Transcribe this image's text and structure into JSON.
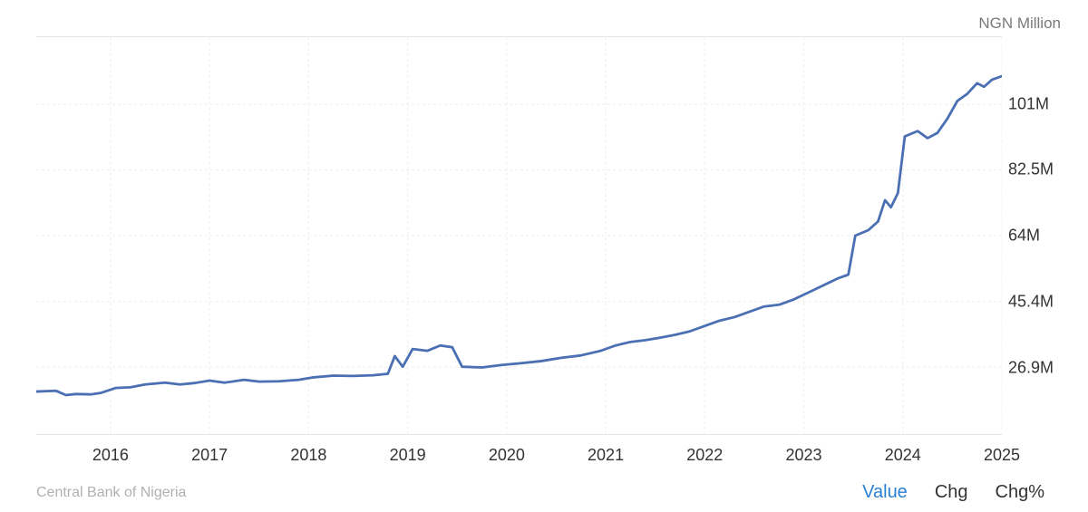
{
  "unit_label": "NGN Million",
  "source": "Central Bank of Nigeria",
  "tabs": {
    "value": "Value",
    "chg": "Chg",
    "chgpct": "Chg%"
  },
  "chart": {
    "type": "line",
    "line_color": "#4a6fb3",
    "line_width": 2.8,
    "background_color": "#ffffff",
    "grid_color": "#ededed",
    "border_color": "#e5e5e5",
    "xlim": [
      2015.25,
      2025.0
    ],
    "ylim": [
      8.0,
      120.0
    ],
    "x_ticks": [
      2016,
      2017,
      2018,
      2019,
      2020,
      2021,
      2022,
      2023,
      2024,
      2025
    ],
    "y_ticks": [
      {
        "v": 26.9,
        "label": "26.9M"
      },
      {
        "v": 45.4,
        "label": "45.4M"
      },
      {
        "v": 64.0,
        "label": "64M"
      },
      {
        "v": 82.5,
        "label": "82.5M"
      },
      {
        "v": 101.0,
        "label": "101M"
      }
    ],
    "axis_fontsize": 18,
    "unit_fontsize": 17,
    "source_fontsize": 16,
    "tab_fontsize": 20,
    "series": [
      {
        "x": 2015.25,
        "y": 20.0
      },
      {
        "x": 2015.45,
        "y": 20.2
      },
      {
        "x": 2015.55,
        "y": 19.0
      },
      {
        "x": 2015.65,
        "y": 19.3
      },
      {
        "x": 2015.8,
        "y": 19.2
      },
      {
        "x": 2015.9,
        "y": 19.6
      },
      {
        "x": 2016.05,
        "y": 21.0
      },
      {
        "x": 2016.2,
        "y": 21.2
      },
      {
        "x": 2016.35,
        "y": 22.0
      },
      {
        "x": 2016.55,
        "y": 22.5
      },
      {
        "x": 2016.7,
        "y": 22.0
      },
      {
        "x": 2016.85,
        "y": 22.4
      },
      {
        "x": 2017.0,
        "y": 23.1
      },
      {
        "x": 2017.15,
        "y": 22.5
      },
      {
        "x": 2017.35,
        "y": 23.3
      },
      {
        "x": 2017.5,
        "y": 22.8
      },
      {
        "x": 2017.7,
        "y": 22.9
      },
      {
        "x": 2017.9,
        "y": 23.3
      },
      {
        "x": 2018.05,
        "y": 24.0
      },
      {
        "x": 2018.25,
        "y": 24.5
      },
      {
        "x": 2018.45,
        "y": 24.4
      },
      {
        "x": 2018.65,
        "y": 24.6
      },
      {
        "x": 2018.8,
        "y": 25.0
      },
      {
        "x": 2018.87,
        "y": 30.0
      },
      {
        "x": 2018.95,
        "y": 27.0
      },
      {
        "x": 2019.05,
        "y": 32.0
      },
      {
        "x": 2019.2,
        "y": 31.5
      },
      {
        "x": 2019.33,
        "y": 33.0
      },
      {
        "x": 2019.45,
        "y": 32.5
      },
      {
        "x": 2019.55,
        "y": 27.0
      },
      {
        "x": 2019.75,
        "y": 26.8
      },
      {
        "x": 2019.95,
        "y": 27.5
      },
      {
        "x": 2020.15,
        "y": 28.0
      },
      {
        "x": 2020.35,
        "y": 28.6
      },
      {
        "x": 2020.55,
        "y": 29.5
      },
      {
        "x": 2020.75,
        "y": 30.2
      },
      {
        "x": 2020.95,
        "y": 31.5
      },
      {
        "x": 2021.1,
        "y": 33.0
      },
      {
        "x": 2021.25,
        "y": 34.0
      },
      {
        "x": 2021.4,
        "y": 34.5
      },
      {
        "x": 2021.55,
        "y": 35.2
      },
      {
        "x": 2021.7,
        "y": 36.0
      },
      {
        "x": 2021.85,
        "y": 37.0
      },
      {
        "x": 2022.0,
        "y": 38.5
      },
      {
        "x": 2022.15,
        "y": 40.0
      },
      {
        "x": 2022.3,
        "y": 41.0
      },
      {
        "x": 2022.45,
        "y": 42.5
      },
      {
        "x": 2022.6,
        "y": 44.0
      },
      {
        "x": 2022.75,
        "y": 44.5
      },
      {
        "x": 2022.9,
        "y": 46.0
      },
      {
        "x": 2023.05,
        "y": 48.0
      },
      {
        "x": 2023.2,
        "y": 50.0
      },
      {
        "x": 2023.35,
        "y": 52.0
      },
      {
        "x": 2023.45,
        "y": 53.0
      },
      {
        "x": 2023.52,
        "y": 64.0
      },
      {
        "x": 2023.65,
        "y": 65.5
      },
      {
        "x": 2023.75,
        "y": 68.0
      },
      {
        "x": 2023.82,
        "y": 74.0
      },
      {
        "x": 2023.88,
        "y": 72.0
      },
      {
        "x": 2023.95,
        "y": 76.0
      },
      {
        "x": 2024.02,
        "y": 92.0
      },
      {
        "x": 2024.15,
        "y": 93.5
      },
      {
        "x": 2024.25,
        "y": 91.5
      },
      {
        "x": 2024.35,
        "y": 93.0
      },
      {
        "x": 2024.45,
        "y": 97.0
      },
      {
        "x": 2024.55,
        "y": 102.0
      },
      {
        "x": 2024.65,
        "y": 104.0
      },
      {
        "x": 2024.75,
        "y": 107.0
      },
      {
        "x": 2024.82,
        "y": 106.0
      },
      {
        "x": 2024.9,
        "y": 108.0
      },
      {
        "x": 2025.0,
        "y": 109.0
      }
    ]
  }
}
